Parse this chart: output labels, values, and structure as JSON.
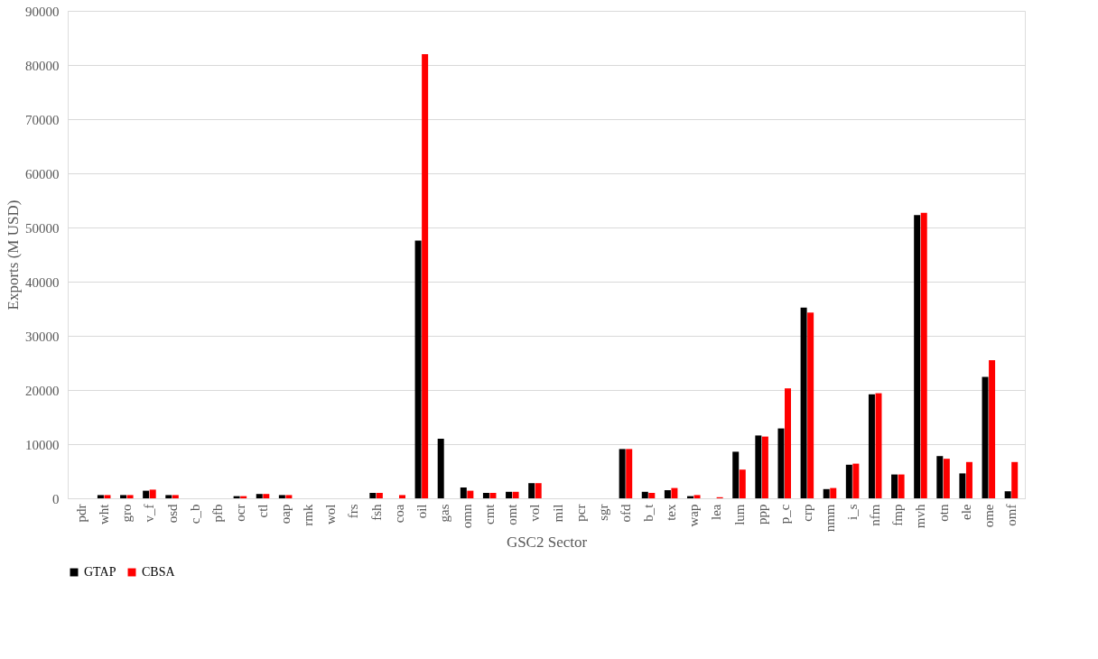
{
  "chart_data": {
    "type": "bar",
    "xlabel": "GSC2 Sector",
    "ylabel": "Exports (M USD)",
    "categories": [
      "pdr",
      "wht",
      "gro",
      "v_f",
      "osd",
      "c_b",
      "pfb",
      "ocr",
      "ctl",
      "oap",
      "rmk",
      "wol",
      "frs",
      "fsh",
      "coa",
      "oil",
      "gas",
      "omn",
      "cmt",
      "omt",
      "vol",
      "mil",
      "pcr",
      "sgr",
      "ofd",
      "b_t",
      "tex",
      "wap",
      "lea",
      "lum",
      "ppp",
      "p_c",
      "crp",
      "nmm",
      "i_s",
      "nfm",
      "fmp",
      "mvh",
      "otn",
      "ele",
      "ome",
      "omf"
    ],
    "series": [
      {
        "name": "GTAP",
        "color": "#000000",
        "values": [
          0,
          600,
          600,
          1400,
          600,
          0,
          0,
          400,
          800,
          600,
          0,
          0,
          0,
          1000,
          0,
          47600,
          11000,
          2000,
          1000,
          1200,
          2800,
          0,
          0,
          0,
          9100,
          1200,
          1500,
          400,
          0,
          8600,
          11600,
          12900,
          35200,
          1700,
          6200,
          19200,
          4400,
          52300,
          7800,
          4600,
          22400,
          1300
        ]
      },
      {
        "name": "CBSA",
        "color": "#ff0000",
        "values": [
          0,
          600,
          600,
          1600,
          600,
          0,
          0,
          400,
          800,
          600,
          0,
          0,
          0,
          1000,
          600,
          82000,
          0,
          1400,
          1000,
          1200,
          2800,
          0,
          0,
          0,
          9100,
          1000,
          1900,
          600,
          200,
          5300,
          11400,
          20300,
          34300,
          1900,
          6400,
          19400,
          4400,
          52700,
          7300,
          6700,
          25500,
          6700
        ]
      }
    ],
    "ylim": [
      0,
      90000
    ],
    "yticks": [
      0,
      10000,
      20000,
      30000,
      40000,
      50000,
      60000,
      70000,
      80000,
      90000
    ],
    "grid": "y",
    "legend": "bottom"
  }
}
